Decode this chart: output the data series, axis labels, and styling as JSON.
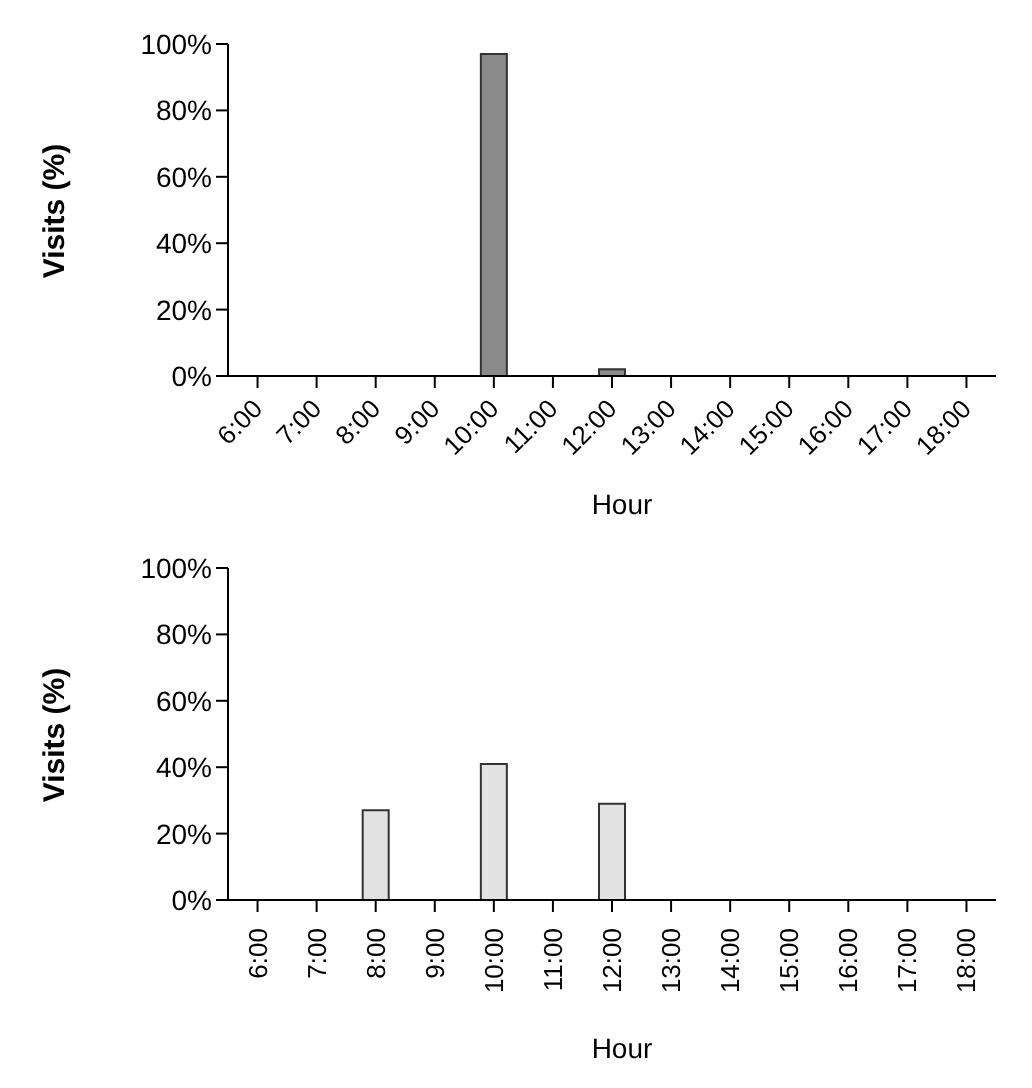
{
  "chart_data": [
    {
      "type": "bar",
      "xlabel": "Hour",
      "ylabel": "Visits (%)",
      "categories": [
        "6:00",
        "7:00",
        "8:00",
        "9:00",
        "10:00",
        "11:00",
        "12:00",
        "13:00",
        "14:00",
        "15:00",
        "16:00",
        "17:00",
        "18:00"
      ],
      "values": [
        0,
        0,
        0,
        0,
        97,
        0,
        2,
        0,
        0,
        0,
        0,
        0,
        0
      ],
      "color": "#8a8a8a",
      "ylim": [
        0,
        100
      ],
      "yticks": [
        {
          "value": 0,
          "label": "0%"
        },
        {
          "value": 20,
          "label": "20%"
        },
        {
          "value": 40,
          "label": "40%"
        },
        {
          "value": 60,
          "label": "60%"
        },
        {
          "value": 80,
          "label": "80%"
        },
        {
          "value": 100,
          "label": "100%"
        }
      ],
      "grid": false
    },
    {
      "type": "bar",
      "xlabel": "Hour",
      "ylabel": "Visits (%)",
      "categories": [
        "6:00",
        "7:00",
        "8:00",
        "9:00",
        "10:00",
        "11:00",
        "12:00",
        "13:00",
        "14:00",
        "15:00",
        "16:00",
        "17:00",
        "18:00"
      ],
      "values": [
        0,
        0,
        27,
        0,
        41,
        0,
        29,
        0,
        0,
        0,
        0,
        0,
        0
      ],
      "color": "#e2e2e2",
      "ylim": [
        0,
        100
      ],
      "yticks": [
        {
          "value": 0,
          "label": "0%"
        },
        {
          "value": 20,
          "label": "20%"
        },
        {
          "value": 40,
          "label": "40%"
        },
        {
          "value": 60,
          "label": "60%"
        },
        {
          "value": 80,
          "label": "80%"
        },
        {
          "value": 100,
          "label": "100%"
        }
      ],
      "grid": false
    }
  ]
}
